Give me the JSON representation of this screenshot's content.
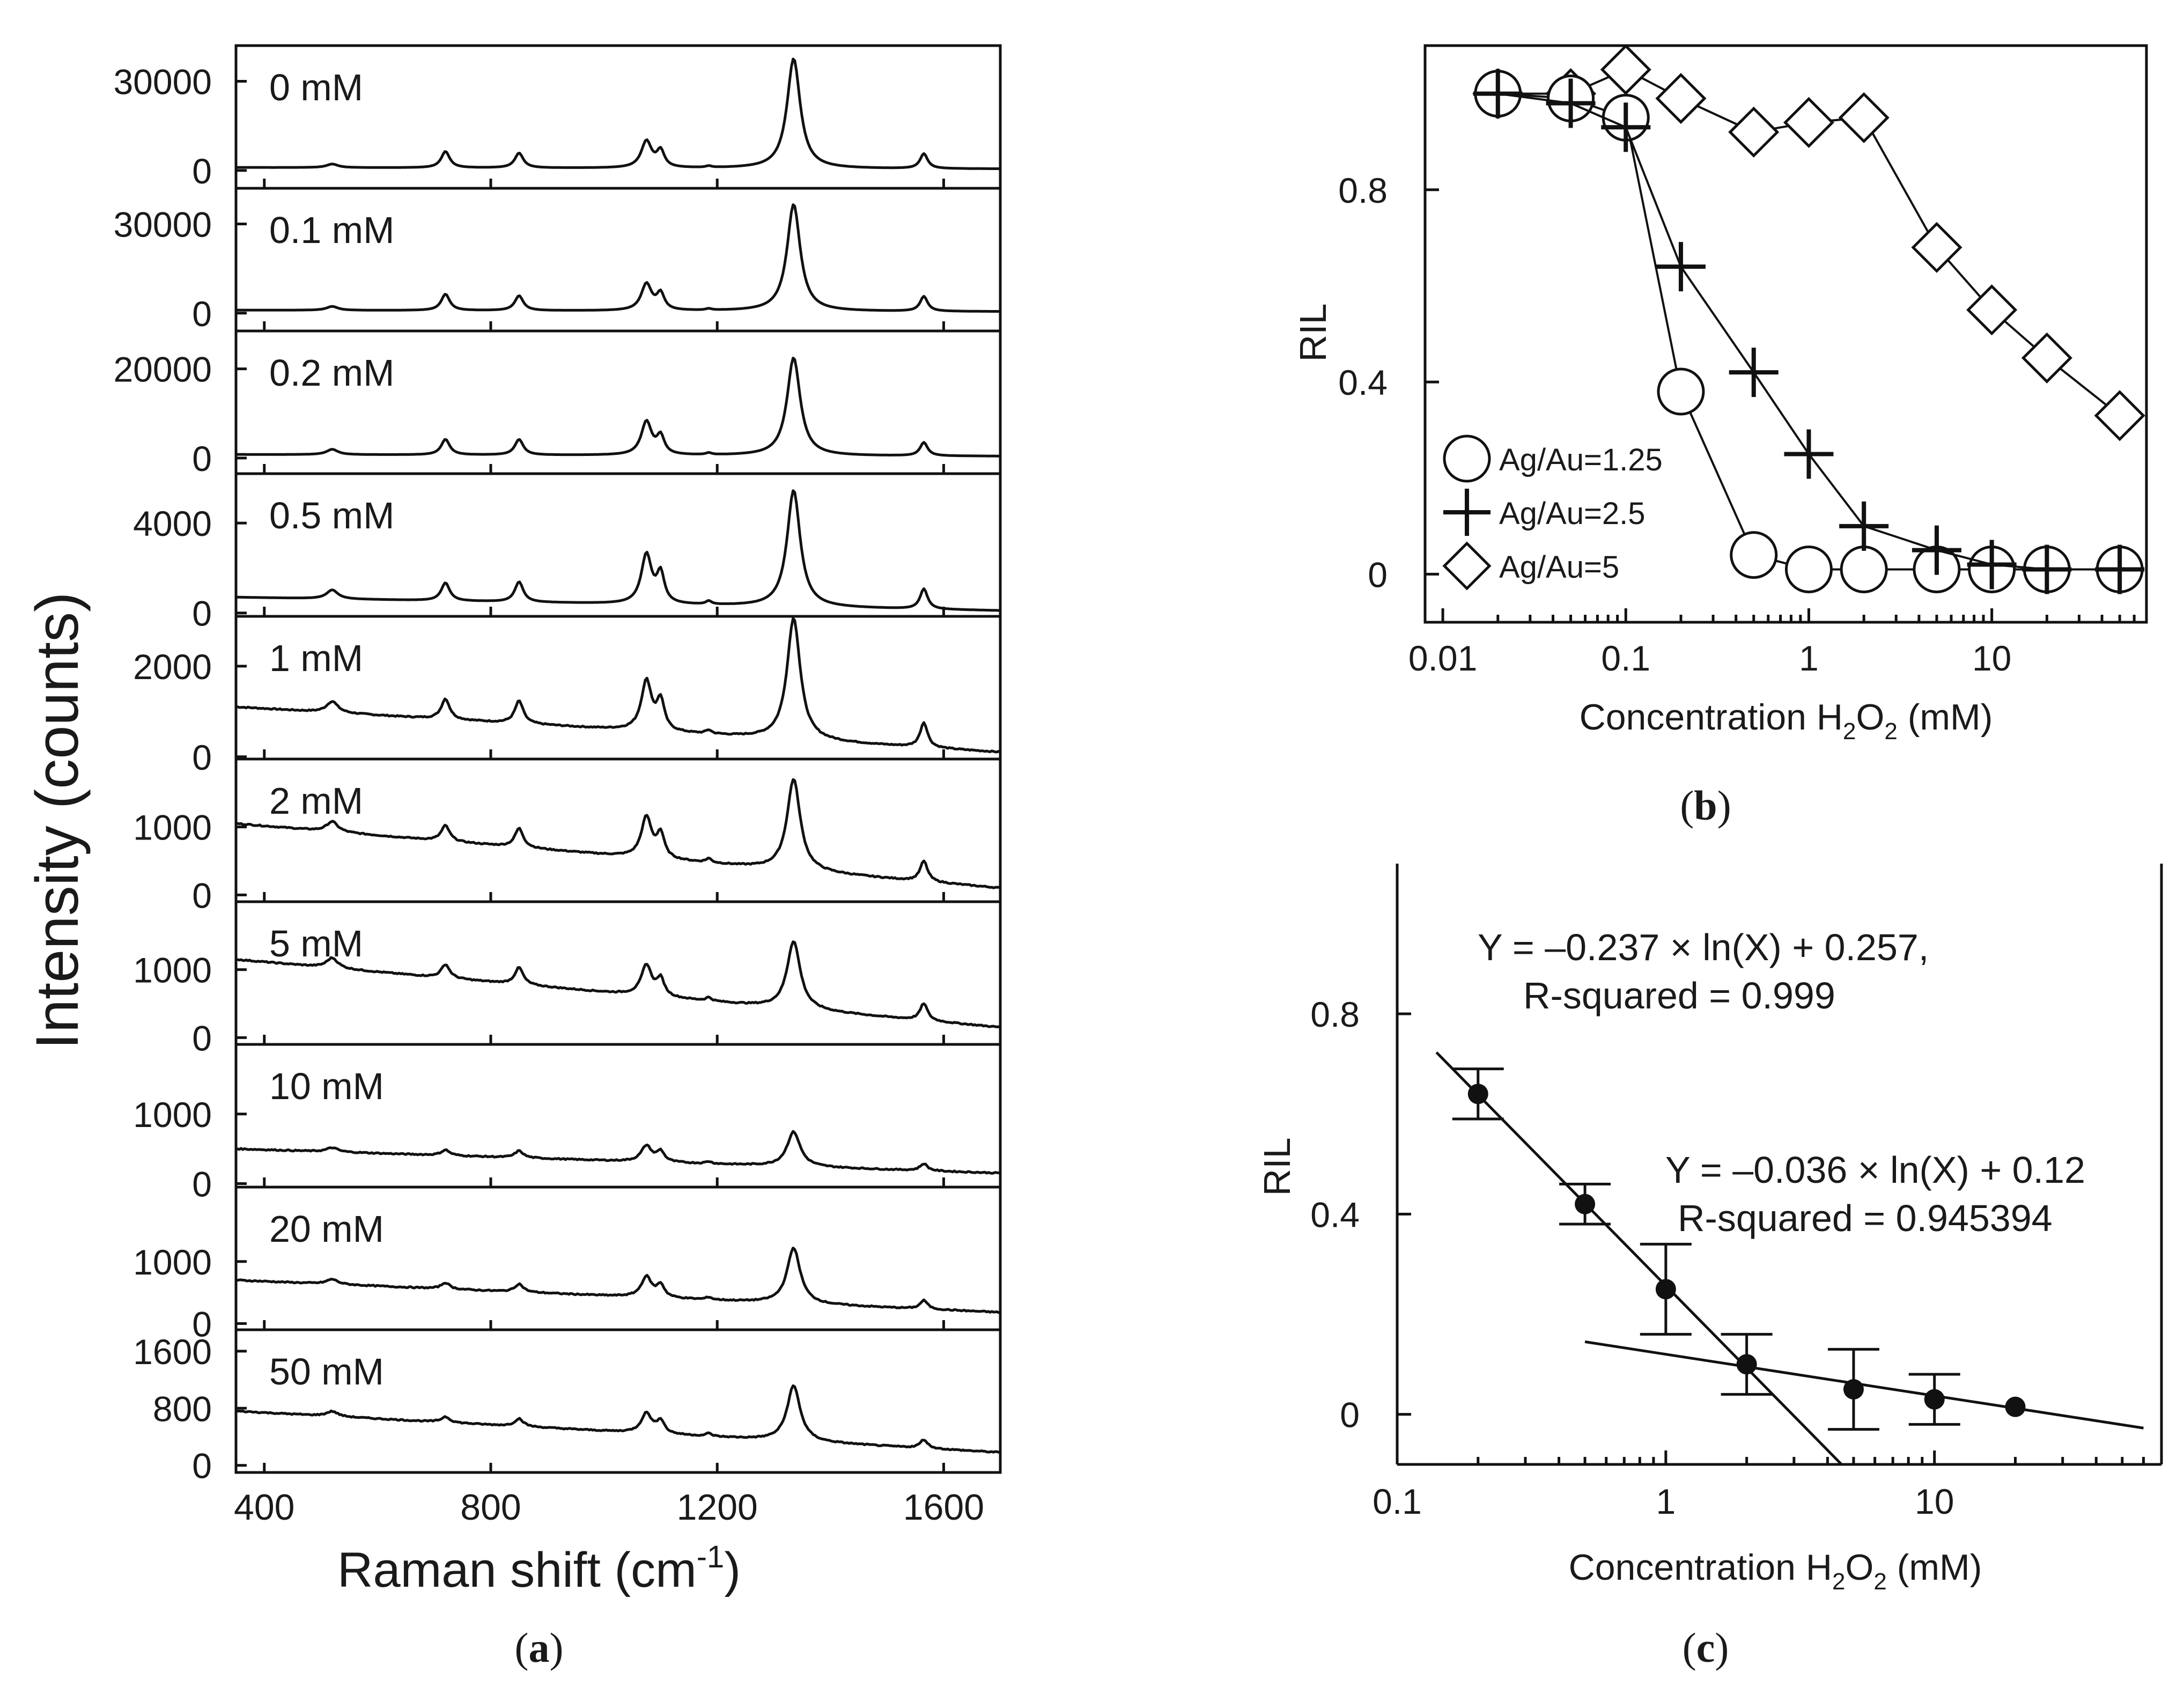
{
  "captions": {
    "a": "a",
    "b": "b",
    "c": "c"
  },
  "chart_data": [
    {
      "id": "a",
      "type": "line",
      "title": "",
      "xlabel": "Raman shift (cm-1)",
      "xlabel_main": "Raman shift (cm",
      "xlabel_sup": "-1",
      "xlabel_close": ")",
      "ylabel": "Intensity (counts)",
      "xlim": [
        350,
        1700
      ],
      "xticks": [
        400,
        800,
        1200,
        1600
      ],
      "peak_positions": [
        520,
        720,
        850,
        1075,
        1100,
        1185,
        1335,
        1565
      ],
      "panels": [
        {
          "label": "0 mM",
          "yticks": [
            0,
            30000
          ],
          "ylim": [
            -6000,
            42000
          ],
          "baseline_start": 1000,
          "baseline_end": 500,
          "peaks": [
            1200,
            5500,
            5000,
            9000,
            5500,
            500,
            37000,
            5000
          ]
        },
        {
          "label": "0.1 mM",
          "yticks": [
            0,
            30000
          ],
          "ylim": [
            -6000,
            42000
          ],
          "baseline_start": 1000,
          "baseline_end": 500,
          "peaks": [
            1300,
            5500,
            5000,
            9000,
            5500,
            500,
            36000,
            5000
          ]
        },
        {
          "label": "0.2 mM",
          "yticks": [
            0,
            20000
          ],
          "ylim": [
            -3500,
            28500
          ],
          "baseline_start": 800,
          "baseline_end": 400,
          "peaks": [
            1200,
            3500,
            3500,
            7500,
            4000,
            400,
            22000,
            3000
          ]
        },
        {
          "label": "0.5 mM",
          "yticks": [
            0,
            4000
          ],
          "ylim": [
            -150,
            6200
          ],
          "baseline_start": 700,
          "baseline_end": 100,
          "peaks": [
            400,
            800,
            900,
            2200,
            1300,
            150,
            5200,
            900
          ]
        },
        {
          "label": "1 mM",
          "yticks": [
            0,
            2000
          ],
          "ylim": [
            -50,
            3100
          ],
          "baseline_start": 1100,
          "baseline_end": 100,
          "peaks": [
            250,
            450,
            500,
            1100,
            650,
            80,
            2700,
            550
          ]
        },
        {
          "label": "2 mM",
          "yticks": [
            0,
            1000
          ],
          "ylim": [
            -100,
            2000
          ],
          "baseline_start": 1050,
          "baseline_end": 100,
          "peaks": [
            150,
            230,
            280,
            600,
            350,
            60,
            1350,
            300
          ]
        },
        {
          "label": "5 mM",
          "yticks": [
            0,
            1000
          ],
          "ylim": [
            -100,
            2000
          ],
          "baseline_start": 1150,
          "baseline_end": 150,
          "peaks": [
            150,
            200,
            250,
            450,
            250,
            50,
            1000,
            250
          ]
        },
        {
          "label": "10 mM",
          "yticks": [
            0,
            1000
          ],
          "ylim": [
            -50,
            2000
          ],
          "baseline_start": 500,
          "baseline_end": 150,
          "peaks": [
            60,
            80,
            100,
            230,
            150,
            30,
            500,
            100
          ]
        },
        {
          "label": "20 mM",
          "yticks": [
            0,
            1000
          ],
          "ylim": [
            -100,
            2200
          ],
          "baseline_start": 700,
          "baseline_end": 180,
          "peaks": [
            80,
            100,
            130,
            330,
            200,
            40,
            900,
            140
          ]
        },
        {
          "label": "50 mM",
          "yticks": [
            0,
            800,
            1600
          ],
          "ylim": [
            -100,
            1900
          ],
          "baseline_start": 760,
          "baseline_end": 180,
          "peaks": [
            70,
            80,
            110,
            280,
            180,
            40,
            780,
            120
          ]
        }
      ]
    },
    {
      "id": "b",
      "type": "scatter",
      "xscale": "log",
      "xlabel": "Concentration H2O2 (mM)",
      "xlabel_main": "Concentration H",
      "xlabel_sub1": "2",
      "xlabel_mid": "O",
      "xlabel_sub2": "2",
      "xlabel_end": " (mM)",
      "ylabel": "RIL",
      "xlim": [
        0.008,
        70
      ],
      "ylim": [
        -0.1,
        1.1
      ],
      "xticks": [
        0.01,
        0.1,
        1,
        10
      ],
      "xtick_labels": [
        "0.01",
        "0.1",
        "1",
        "10"
      ],
      "yticks": [
        0,
        0.4,
        0.8
      ],
      "ytick_labels": [
        "0",
        "0.4",
        "0.8"
      ],
      "legend_position": "bottom-left",
      "series": [
        {
          "name": "Ag/Au=1.25",
          "marker": "circle",
          "x": [
            0.02,
            0.05,
            0.1,
            0.2,
            0.5,
            1,
            2,
            5,
            10,
            20,
            50
          ],
          "y": [
            1.0,
            0.99,
            0.95,
            0.38,
            0.04,
            0.01,
            0.01,
            0.01,
            0.01,
            0.01,
            0.01
          ]
        },
        {
          "name": "Ag/Au=2.5",
          "marker": "plus",
          "x": [
            0.02,
            0.05,
            0.1,
            0.2,
            0.5,
            1,
            2,
            5,
            10,
            20,
            50
          ],
          "y": [
            1.0,
            0.98,
            0.93,
            0.64,
            0.42,
            0.25,
            0.1,
            0.05,
            0.02,
            0.01,
            0.01
          ]
        },
        {
          "name": "Ag/Au=5",
          "marker": "diamond",
          "x": [
            0.02,
            0.05,
            0.1,
            0.2,
            0.5,
            1,
            2,
            5,
            10,
            20,
            50
          ],
          "y": [
            1.0,
            1.0,
            1.05,
            0.99,
            0.92,
            0.94,
            0.95,
            0.68,
            0.55,
            0.45,
            0.33
          ]
        }
      ]
    },
    {
      "id": "c",
      "type": "scatter",
      "xscale": "log",
      "xlabel": "Concentration H2O2 (mM)",
      "xlabel_main": "Concentration H",
      "xlabel_sub1": "2",
      "xlabel_mid": "O",
      "xlabel_sub2": "2",
      "xlabel_end": " (mM)",
      "ylabel": "RIL",
      "xlim": [
        0.1,
        70
      ],
      "ylim": [
        -0.1,
        1.1
      ],
      "xticks": [
        0.1,
        1,
        10
      ],
      "xtick_labels": [
        "0.1",
        "1",
        "10"
      ],
      "yticks": [
        0,
        0.4,
        0.8
      ],
      "ytick_labels": [
        "0",
        "0.4",
        "0.8"
      ],
      "points": {
        "x": [
          0.2,
          0.5,
          1,
          2,
          5,
          10,
          20
        ],
        "y": [
          0.64,
          0.42,
          0.25,
          0.1,
          0.05,
          0.03,
          0.015
        ],
        "err": [
          0.05,
          0.04,
          0.09,
          0.06,
          0.08,
          0.05,
          0
        ]
      },
      "fits": [
        {
          "equation": "Y = –0.237 × ln(X) + 0.257,",
          "r_squared": "R-squared = 0.999",
          "slope": -0.237,
          "intercept": 0.257,
          "x_range": [
            0.14,
            4.5
          ]
        },
        {
          "equation": "Y = –0.036 × ln(X) + 0.12",
          "r_squared": "R-squared = 0.945394",
          "slope": -0.036,
          "intercept": 0.12,
          "x_range": [
            0.5,
            60
          ]
        }
      ]
    }
  ]
}
